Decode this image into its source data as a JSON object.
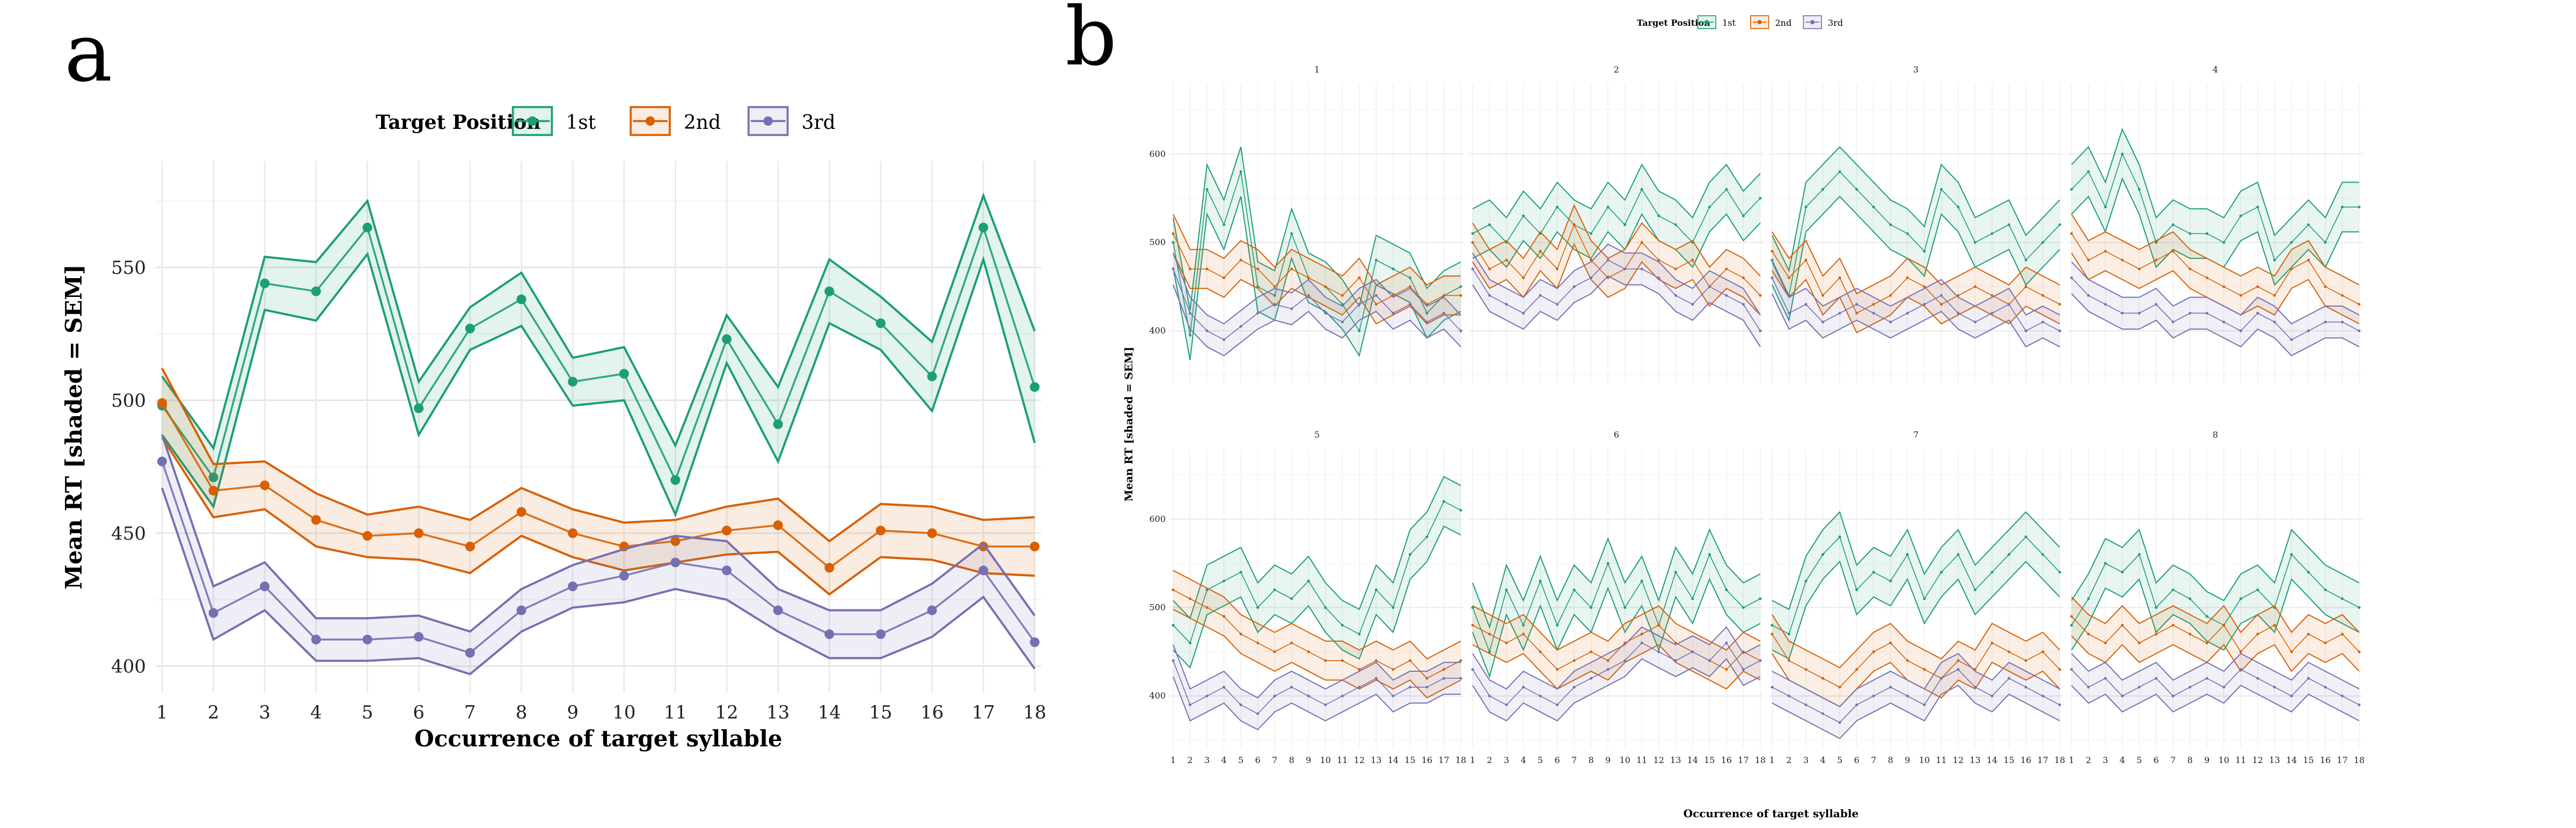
{
  "panel_labels": {
    "a": "a",
    "b": "b"
  },
  "legend": {
    "title": "Target Position",
    "entries": [
      {
        "label": "1st",
        "color": "#1b9e77"
      },
      {
        "label": "2nd",
        "color": "#d95f02"
      },
      {
        "label": "3rd",
        "color": "#7570b3"
      }
    ]
  },
  "chart_data": [
    {
      "type": "line",
      "panel": "a",
      "xlabel": "Occurrence of target syllable",
      "ylabel": "Mean RT [shaded = SEM]",
      "x": [
        1,
        2,
        3,
        4,
        5,
        6,
        7,
        8,
        9,
        10,
        11,
        12,
        13,
        14,
        15,
        16,
        17,
        18
      ],
      "x_ticks": [
        "1",
        "2",
        "3",
        "4",
        "5",
        "6",
        "7",
        "8",
        "9",
        "10",
        "11",
        "12",
        "13",
        "14",
        "15",
        "16",
        "17",
        "18"
      ],
      "y_ticks": [
        400,
        450,
        500,
        550
      ],
      "ylim": [
        390,
        590
      ],
      "grid": true,
      "series": [
        {
          "name": "1st",
          "color": "#1b9e77",
          "mean": [
            498,
            471,
            544,
            541,
            565,
            497,
            527,
            538,
            507,
            510,
            470,
            523,
            491,
            541,
            529,
            509,
            565,
            505
          ],
          "sem": [
            11,
            11,
            10,
            11,
            10,
            10,
            8,
            10,
            9,
            10,
            13,
            9,
            14,
            12,
            10,
            13,
            12,
            21
          ]
        },
        {
          "name": "2nd",
          "color": "#d95f02",
          "mean": [
            499,
            466,
            468,
            455,
            449,
            450,
            445,
            458,
            450,
            445,
            447,
            451,
            453,
            437,
            451,
            450,
            445,
            445
          ],
          "sem": [
            13,
            10,
            9,
            10,
            8,
            10,
            10,
            9,
            9,
            9,
            8,
            9,
            10,
            10,
            10,
            10,
            10,
            11
          ]
        },
        {
          "name": "3rd",
          "color": "#7570b3",
          "mean": [
            477,
            420,
            430,
            410,
            410,
            411,
            405,
            421,
            430,
            434,
            439,
            436,
            421,
            412,
            412,
            421,
            436,
            409
          ],
          "sem": [
            10,
            10,
            9,
            8,
            8,
            8,
            8,
            8,
            8,
            10,
            10,
            11,
            8,
            9,
            9,
            10,
            10,
            10
          ]
        }
      ]
    },
    {
      "type": "line",
      "panel": "b",
      "facets": [
        "1",
        "2",
        "3",
        "4",
        "5",
        "6",
        "7",
        "8"
      ],
      "xlabel": "Occurrence of target syllable",
      "ylabel": "Mean RT [shaded = SEM]",
      "x": [
        1,
        2,
        3,
        4,
        5,
        6,
        7,
        8,
        9,
        10,
        11,
        12,
        13,
        14,
        15,
        16,
        17,
        18
      ],
      "x_ticks": [
        "1",
        "2",
        "3",
        "4",
        "5",
        "6",
        "7",
        "8",
        "9",
        "10",
        "11",
        "12",
        "13",
        "14",
        "15",
        "16",
        "17",
        "18"
      ],
      "y_ticks": [
        400,
        500,
        600
      ],
      "ylim": [
        340,
        680
      ],
      "series_by_facet": [
        {
          "facet": "1",
          "first": [
            500,
            395,
            560,
            520,
            580,
            450,
            440,
            510,
            460,
            450,
            430,
            400,
            480,
            470,
            460,
            420,
            440,
            450
          ],
          "second": [
            510,
            470,
            470,
            460,
            480,
            470,
            450,
            470,
            460,
            450,
            440,
            460,
            430,
            440,
            450,
            430,
            440,
            440
          ],
          "third": [
            470,
            420,
            400,
            390,
            405,
            420,
            430,
            425,
            440,
            420,
            410,
            430,
            440,
            420,
            430,
            410,
            420,
            400
          ]
        },
        {
          "facet": "2",
          "first": [
            510,
            520,
            500,
            530,
            510,
            540,
            520,
            510,
            540,
            520,
            560,
            530,
            520,
            500,
            540,
            560,
            530,
            550
          ],
          "second": [
            500,
            470,
            480,
            460,
            490,
            470,
            520,
            480,
            460,
            470,
            500,
            480,
            470,
            480,
            450,
            470,
            460,
            440
          ],
          "third": [
            470,
            440,
            430,
            420,
            440,
            430,
            450,
            460,
            480,
            470,
            470,
            460,
            440,
            430,
            450,
            440,
            430,
            400
          ]
        },
        {
          "facet": "3",
          "first": [
            480,
            440,
            540,
            560,
            580,
            560,
            540,
            520,
            510,
            490,
            560,
            540,
            500,
            510,
            520,
            480,
            500,
            520
          ],
          "second": [
            490,
            460,
            480,
            440,
            460,
            420,
            430,
            440,
            460,
            450,
            430,
            440,
            450,
            440,
            430,
            450,
            440,
            430
          ],
          "third": [
            460,
            420,
            430,
            410,
            420,
            430,
            420,
            410,
            420,
            430,
            440,
            420,
            410,
            420,
            430,
            400,
            410,
            400
          ]
        },
        {
          "facet": "4",
          "first": [
            560,
            580,
            540,
            600,
            560,
            500,
            520,
            510,
            510,
            500,
            530,
            540,
            480,
            500,
            520,
            500,
            540,
            540
          ],
          "second": [
            510,
            480,
            490,
            480,
            470,
            480,
            490,
            470,
            460,
            450,
            440,
            450,
            440,
            470,
            480,
            450,
            440,
            430
          ],
          "third": [
            460,
            440,
            430,
            420,
            420,
            430,
            410,
            420,
            420,
            410,
            400,
            420,
            410,
            390,
            400,
            410,
            410,
            400
          ]
        },
        {
          "facet": "5",
          "first": [
            480,
            460,
            520,
            530,
            540,
            500,
            520,
            510,
            530,
            500,
            480,
            470,
            520,
            500,
            560,
            580,
            620,
            610
          ],
          "second": [
            520,
            510,
            500,
            490,
            470,
            460,
            450,
            460,
            450,
            440,
            440,
            430,
            440,
            430,
            440,
            420,
            430,
            440
          ],
          "third": [
            440,
            390,
            400,
            410,
            390,
            380,
            400,
            410,
            400,
            390,
            400,
            410,
            420,
            400,
            410,
            410,
            420,
            420
          ]
        },
        {
          "facet": "6",
          "first": [
            500,
            450,
            520,
            480,
            530,
            480,
            520,
            500,
            550,
            500,
            530,
            480,
            540,
            510,
            560,
            520,
            500,
            510
          ],
          "second": [
            480,
            470,
            460,
            470,
            450,
            430,
            440,
            450,
            440,
            460,
            470,
            480,
            460,
            450,
            440,
            430,
            450,
            440
          ],
          "third": [
            430,
            400,
            390,
            410,
            400,
            390,
            410,
            420,
            430,
            440,
            460,
            450,
            440,
            450,
            440,
            460,
            430,
            440
          ]
        },
        {
          "facet": "7",
          "first": [
            480,
            470,
            530,
            560,
            580,
            520,
            540,
            530,
            560,
            510,
            540,
            560,
            520,
            540,
            560,
            580,
            560,
            540
          ],
          "second": [
            470,
            440,
            430,
            420,
            410,
            430,
            450,
            460,
            440,
            430,
            420,
            440,
            430,
            460,
            450,
            440,
            450,
            430
          ],
          "third": [
            410,
            400,
            390,
            380,
            370,
            390,
            400,
            410,
            400,
            390,
            420,
            430,
            410,
            400,
            420,
            410,
            400,
            390
          ]
        },
        {
          "facet": "8",
          "first": [
            480,
            510,
            550,
            540,
            560,
            500,
            520,
            510,
            490,
            480,
            510,
            520,
            500,
            560,
            540,
            520,
            510,
            500
          ],
          "second": [
            490,
            470,
            460,
            480,
            460,
            470,
            480,
            470,
            460,
            480,
            450,
            470,
            480,
            450,
            470,
            460,
            470,
            450
          ],
          "third": [
            430,
            410,
            420,
            400,
            410,
            420,
            400,
            410,
            420,
            410,
            430,
            420,
            410,
            400,
            420,
            410,
            400,
            390
          ]
        }
      ]
    }
  ]
}
